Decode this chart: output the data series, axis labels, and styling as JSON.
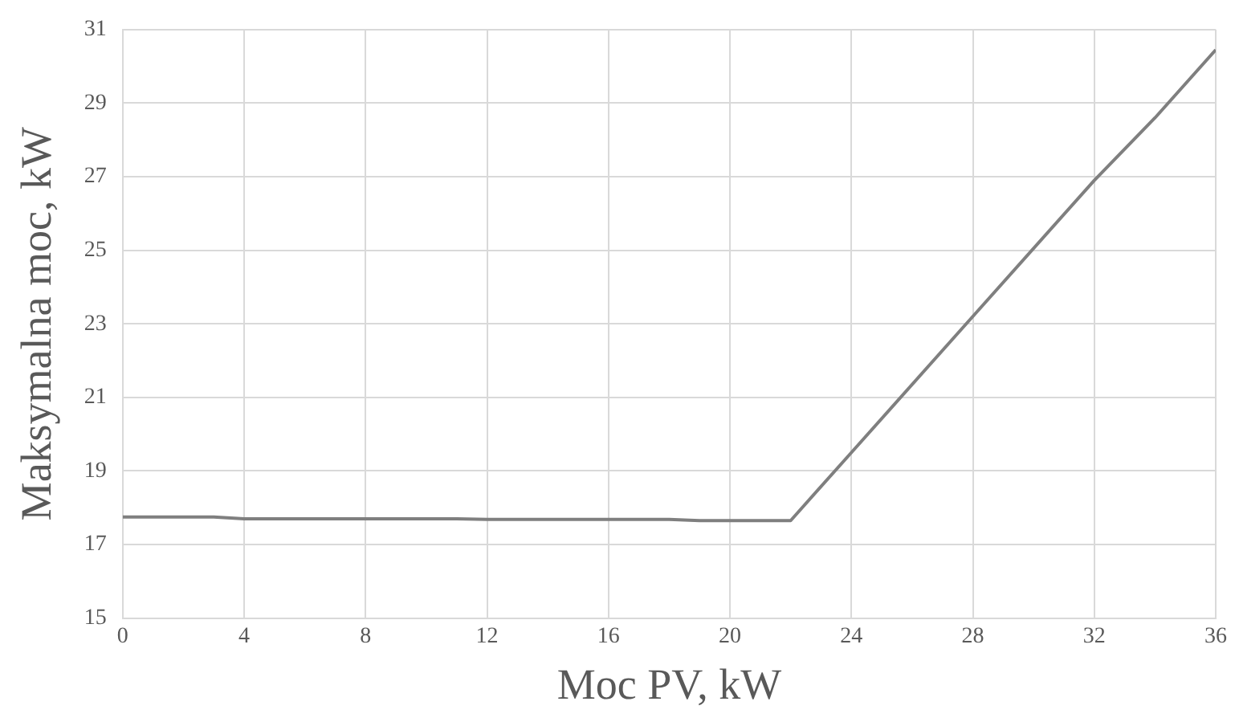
{
  "chart_data": {
    "type": "line",
    "xlabel": "Moc PV, kW",
    "ylabel": "Maksymalna moc, kW",
    "series": [
      {
        "color": "#7f7f7f",
        "x": [
          0,
          3,
          4,
          11,
          12,
          18,
          19,
          22,
          24,
          28,
          32,
          34,
          36
        ],
        "values": [
          17.75,
          17.75,
          17.7,
          17.7,
          17.68,
          17.68,
          17.65,
          17.65,
          19.5,
          23.2,
          26.9,
          28.6,
          30.45
        ]
      }
    ],
    "xlim": [
      0,
      36
    ],
    "xticks": [
      0,
      4,
      8,
      12,
      16,
      20,
      24,
      28,
      32,
      36
    ],
    "ylim": [
      15,
      31
    ],
    "yticks": [
      15,
      17,
      19,
      21,
      23,
      25,
      27,
      29,
      31
    ],
    "grid": true,
    "legend": false,
    "marker": "none",
    "line_style": "solid"
  }
}
